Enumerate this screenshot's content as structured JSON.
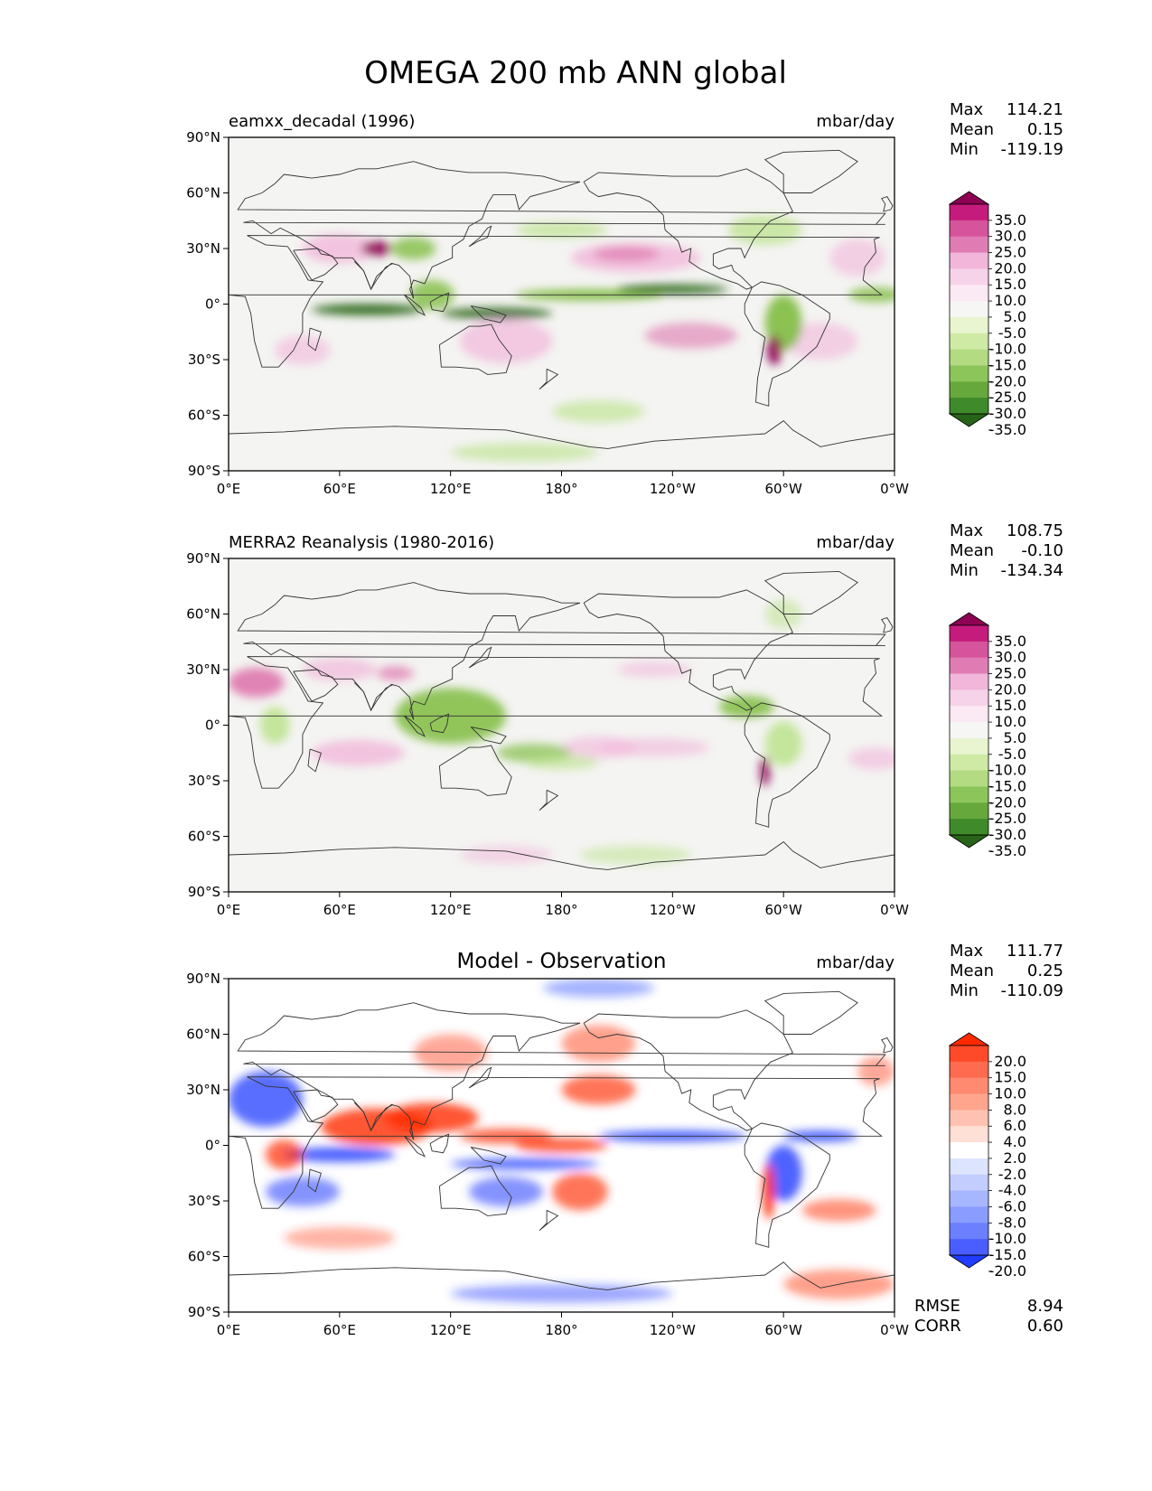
{
  "page_title": "OMEGA 200 mb ANN global",
  "x_ticks": [
    "0°E",
    "60°E",
    "120°E",
    "180°",
    "120°W",
    "60°W",
    "0°W"
  ],
  "y_ticks": [
    "90°N",
    "60°N",
    "30°N",
    "0°",
    "30°S",
    "60°S",
    "90°S"
  ],
  "stat_labels": {
    "max": "Max",
    "mean": "Mean",
    "min": "Min",
    "rmse": "RMSE",
    "corr": "CORR"
  },
  "colors": {
    "map_background": "#f4f4f2",
    "coast": "#333333",
    "pos_strong": "#8e0152",
    "pos_mid": "#de77ae",
    "pos_light": "#f1b6da",
    "neg_strong": "#276419",
    "neg_mid": "#7fbc41",
    "neg_light": "#b8e186",
    "diff_pos": "#ff2a00",
    "diff_neg": "#1f3cff"
  },
  "chart_data": [
    {
      "type": "heatmap",
      "title": "eamxx_decadal (1996)",
      "units": "mbar/day",
      "stats": {
        "max": "114.21",
        "mean": "0.15",
        "min": "-119.19"
      },
      "colorbar": {
        "levels": [
          "35.0",
          "30.0",
          "25.0",
          "20.0",
          "15.0",
          "10.0",
          "5.0",
          "-5.0",
          "-10.0",
          "-15.0",
          "-20.0",
          "-25.0",
          "-30.0",
          "-35.0"
        ],
        "colors": [
          "#8e0152",
          "#c51b7d",
          "#d6549b",
          "#e07cb4",
          "#f1b6da",
          "#f6d3e8",
          "#fbe9f3",
          "#f6f6f4",
          "#e8f5d0",
          "#cfeaa5",
          "#b3db82",
          "#8cc65a",
          "#66a83c",
          "#3f8a2a",
          "#276419"
        ]
      },
      "x_range": [
        0,
        360
      ],
      "y_range": [
        -90,
        90
      ]
    },
    {
      "type": "heatmap",
      "title": "MERRA2 Reanalysis (1980-2016)",
      "units": "mbar/day",
      "stats": {
        "max": "108.75",
        "mean": "-0.10",
        "min": "-134.34"
      },
      "colorbar": {
        "levels": [
          "35.0",
          "30.0",
          "25.0",
          "20.0",
          "15.0",
          "10.0",
          "5.0",
          "-5.0",
          "-10.0",
          "-15.0",
          "-20.0",
          "-25.0",
          "-30.0",
          "-35.0"
        ],
        "colors": [
          "#8e0152",
          "#c51b7d",
          "#d6549b",
          "#e07cb4",
          "#f1b6da",
          "#f6d3e8",
          "#fbe9f3",
          "#f6f6f4",
          "#e8f5d0",
          "#cfeaa5",
          "#b3db82",
          "#8cc65a",
          "#66a83c",
          "#3f8a2a",
          "#276419"
        ]
      },
      "x_range": [
        0,
        360
      ],
      "y_range": [
        -90,
        90
      ]
    },
    {
      "type": "heatmap",
      "title": "Model - Observation",
      "units": "mbar/day",
      "stats": {
        "max": "111.77",
        "mean": "0.25",
        "min": "-110.09",
        "rmse": "8.94",
        "corr": "0.60"
      },
      "colorbar": {
        "levels": [
          "20.0",
          "15.0",
          "10.0",
          "8.0",
          "6.0",
          "4.0",
          "2.0",
          "-2.0",
          "-4.0",
          "-6.0",
          "-8.0",
          "-10.0",
          "-15.0",
          "-20.0"
        ],
        "colors": [
          "#ff2a00",
          "#ff4a2a",
          "#ff6b4f",
          "#ff8a70",
          "#ffa58e",
          "#ffc2b2",
          "#ffe0d6",
          "#ffffff",
          "#dde4ff",
          "#c3ceff",
          "#a6b6ff",
          "#8a9cff",
          "#6b7fff",
          "#4a5eff",
          "#1f3cff"
        ]
      },
      "x_range": [
        0,
        360
      ],
      "y_range": [
        -90,
        90
      ]
    }
  ]
}
